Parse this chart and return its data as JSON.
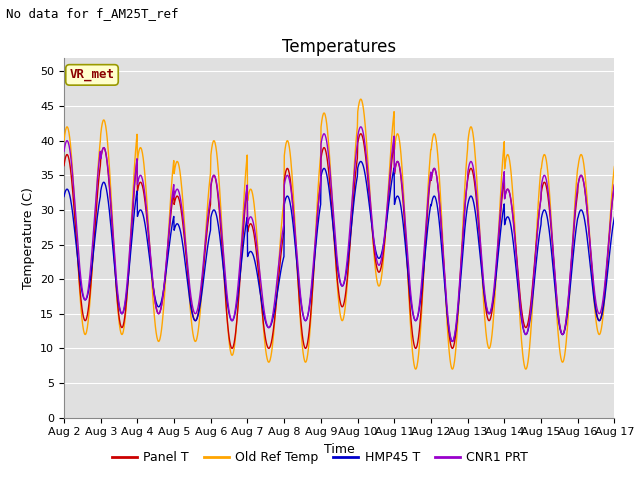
{
  "title": "Temperatures",
  "xlabel": "Time",
  "ylabel": "Temperature (C)",
  "note": "No data for f_AM25T_ref",
  "vr_met_label": "VR_met",
  "ylim": [
    0,
    52
  ],
  "yticks": [
    0,
    5,
    10,
    15,
    20,
    25,
    30,
    35,
    40,
    45,
    50
  ],
  "xtick_labels": [
    "Aug 2",
    "Aug 3",
    "Aug 4",
    "Aug 5",
    "Aug 6",
    "Aug 7",
    "Aug 8",
    "Aug 9",
    "Aug 10",
    "Aug 11",
    "Aug 12",
    "Aug 13",
    "Aug 14",
    "Aug 15",
    "Aug 16",
    "Aug 17"
  ],
  "series_colors": {
    "Panel T": "#cc0000",
    "Old Ref Temp": "#ffa500",
    "HMP45 T": "#0000cc",
    "CNR1 PRT": "#9900cc"
  },
  "background_color": "#e0e0e0",
  "grid_color": "#ffffff",
  "fig_background": "#ffffff",
  "legend_entries": [
    "Panel T",
    "Old Ref Temp",
    "HMP45 T",
    "CNR1 PRT"
  ],
  "title_fontsize": 12,
  "axis_label_fontsize": 9,
  "tick_fontsize": 8,
  "note_fontsize": 9,
  "vr_fontsize": 9,
  "legend_fontsize": 9,
  "n_days": 15,
  "pts_per_day": 96,
  "day_mins_panel": [
    14,
    13,
    15,
    14,
    10,
    10,
    10,
    16,
    21,
    10,
    10,
    14,
    13,
    12,
    14
  ],
  "day_maxs_panel": [
    38,
    39,
    34,
    32,
    35,
    28,
    36,
    39,
    41,
    37,
    36,
    36,
    33,
    34,
    35
  ],
  "day_mins_old": [
    12,
    12,
    11,
    11,
    9,
    8,
    8,
    14,
    19,
    7,
    7,
    10,
    7,
    8,
    12
  ],
  "day_maxs_old": [
    42,
    43,
    39,
    37,
    40,
    33,
    40,
    44,
    46,
    41,
    41,
    42,
    38,
    38,
    38
  ],
  "day_mins_hmp": [
    17,
    15,
    16,
    14,
    14,
    13,
    14,
    19,
    23,
    14,
    11,
    15,
    12,
    12,
    14
  ],
  "day_maxs_hmp": [
    33,
    34,
    30,
    28,
    30,
    24,
    32,
    36,
    37,
    32,
    32,
    32,
    29,
    30,
    30
  ],
  "day_mins_cnr": [
    17,
    15,
    15,
    15,
    14,
    13,
    14,
    19,
    22,
    14,
    11,
    15,
    12,
    12,
    15
  ],
  "day_maxs_cnr": [
    40,
    39,
    35,
    33,
    35,
    29,
    35,
    41,
    42,
    37,
    36,
    37,
    33,
    35,
    35
  ]
}
